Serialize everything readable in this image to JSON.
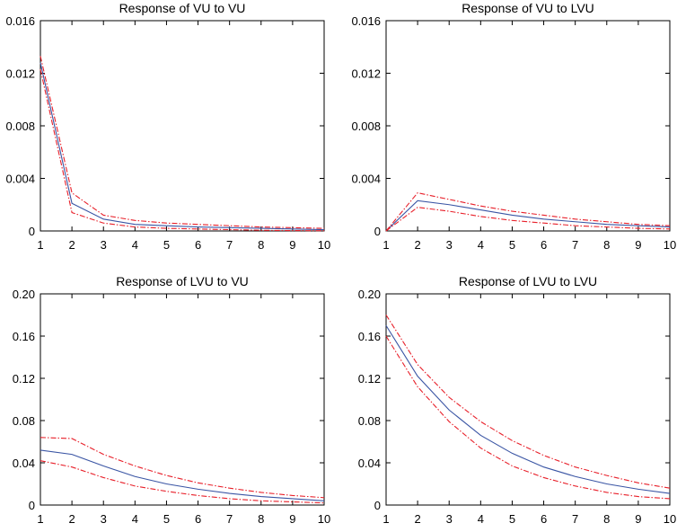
{
  "colors": {
    "irf": "#3a55a4",
    "band": "#e8202a",
    "axis": "#000000"
  },
  "chart_data": [
    {
      "type": "line",
      "title": "Response of VU to VU",
      "x": [
        1,
        2,
        3,
        4,
        5,
        6,
        7,
        8,
        9,
        10
      ],
      "ylim": [
        0,
        0.016
      ],
      "yticks": [
        "0",
        "0.004",
        "0.008",
        "0.012",
        "0.016"
      ],
      "ytick_values": [
        0,
        0.004,
        0.008,
        0.012,
        0.016
      ],
      "xticks": [
        "1",
        "2",
        "3",
        "4",
        "5",
        "6",
        "7",
        "8",
        "9",
        "10"
      ],
      "series": [
        {
          "name": "response",
          "style": "solid",
          "values": [
            0.0128,
            0.0021,
            0.0009,
            0.0005,
            0.0004,
            0.0003,
            0.00025,
            0.0002,
            0.00015,
            0.0001
          ]
        },
        {
          "name": "upper",
          "style": "dashed",
          "values": [
            0.0133,
            0.0029,
            0.0012,
            0.0008,
            0.0006,
            0.0005,
            0.0004,
            0.0003,
            0.00025,
            0.0002
          ]
        },
        {
          "name": "lower",
          "style": "dashed",
          "values": [
            0.0123,
            0.0014,
            0.0006,
            0.0003,
            0.0002,
            0.00015,
            0.0001,
            5e-05,
            3e-05,
            2e-05
          ]
        }
      ]
    },
    {
      "type": "line",
      "title": "Response of VU to LVU",
      "x": [
        1,
        2,
        3,
        4,
        5,
        6,
        7,
        8,
        9,
        10
      ],
      "ylim": [
        0,
        0.016
      ],
      "yticks": [
        "0",
        "0.004",
        "0.008",
        "0.012",
        "0.016"
      ],
      "ytick_values": [
        0,
        0.004,
        0.008,
        0.012,
        0.016
      ],
      "xticks": [
        "1",
        "2",
        "3",
        "4",
        "5",
        "6",
        "7",
        "8",
        "9",
        "10"
      ],
      "series": [
        {
          "name": "response",
          "style": "solid",
          "values": [
            0,
            0.0023,
            0.002,
            0.0016,
            0.0012,
            0.0009,
            0.0007,
            0.0005,
            0.0004,
            0.0003
          ]
        },
        {
          "name": "upper",
          "style": "dashed",
          "values": [
            0,
            0.0029,
            0.0024,
            0.0019,
            0.0015,
            0.0012,
            0.0009,
            0.0007,
            0.0005,
            0.0004
          ]
        },
        {
          "name": "lower",
          "style": "dashed",
          "values": [
            0,
            0.0018,
            0.0015,
            0.0011,
            0.0008,
            0.0006,
            0.0004,
            0.0003,
            0.0002,
            0.00015
          ]
        }
      ]
    },
    {
      "type": "line",
      "title": "Response of LVU to VU",
      "x": [
        1,
        2,
        3,
        4,
        5,
        6,
        7,
        8,
        9,
        10
      ],
      "ylim": [
        0,
        0.2
      ],
      "yticks": [
        "0",
        "0.04",
        "0.08",
        "0.12",
        "0.16",
        "0.20"
      ],
      "ytick_values": [
        0,
        0.04,
        0.08,
        0.12,
        0.16,
        0.2
      ],
      "xticks": [
        "1",
        "2",
        "3",
        "4",
        "5",
        "6",
        "7",
        "8",
        "9",
        "10"
      ],
      "series": [
        {
          "name": "response",
          "style": "solid",
          "values": [
            0.052,
            0.048,
            0.037,
            0.027,
            0.02,
            0.015,
            0.011,
            0.008,
            0.006,
            0.004
          ]
        },
        {
          "name": "upper",
          "style": "dashed",
          "values": [
            0.064,
            0.063,
            0.048,
            0.037,
            0.028,
            0.021,
            0.016,
            0.012,
            0.009,
            0.007
          ]
        },
        {
          "name": "lower",
          "style": "dashed",
          "values": [
            0.042,
            0.036,
            0.026,
            0.018,
            0.013,
            0.009,
            0.006,
            0.004,
            0.003,
            0.002
          ]
        }
      ]
    },
    {
      "type": "line",
      "title": "Response of LVU to LVU",
      "x": [
        1,
        2,
        3,
        4,
        5,
        6,
        7,
        8,
        9,
        10
      ],
      "ylim": [
        0,
        0.2
      ],
      "yticks": [
        "0",
        "0.04",
        "0.08",
        "0.12",
        "0.16",
        "0.20"
      ],
      "ytick_values": [
        0,
        0.04,
        0.08,
        0.12,
        0.16,
        0.2
      ],
      "xticks": [
        "1",
        "2",
        "3",
        "4",
        "5",
        "6",
        "7",
        "8",
        "9",
        "10"
      ],
      "series": [
        {
          "name": "response",
          "style": "solid",
          "values": [
            0.17,
            0.122,
            0.09,
            0.066,
            0.049,
            0.036,
            0.027,
            0.02,
            0.015,
            0.011
          ]
        },
        {
          "name": "upper",
          "style": "dashed",
          "values": [
            0.18,
            0.133,
            0.102,
            0.079,
            0.061,
            0.047,
            0.036,
            0.028,
            0.021,
            0.016
          ]
        },
        {
          "name": "lower",
          "style": "dashed",
          "values": [
            0.16,
            0.112,
            0.079,
            0.054,
            0.037,
            0.026,
            0.018,
            0.012,
            0.008,
            0.006
          ]
        }
      ]
    }
  ]
}
